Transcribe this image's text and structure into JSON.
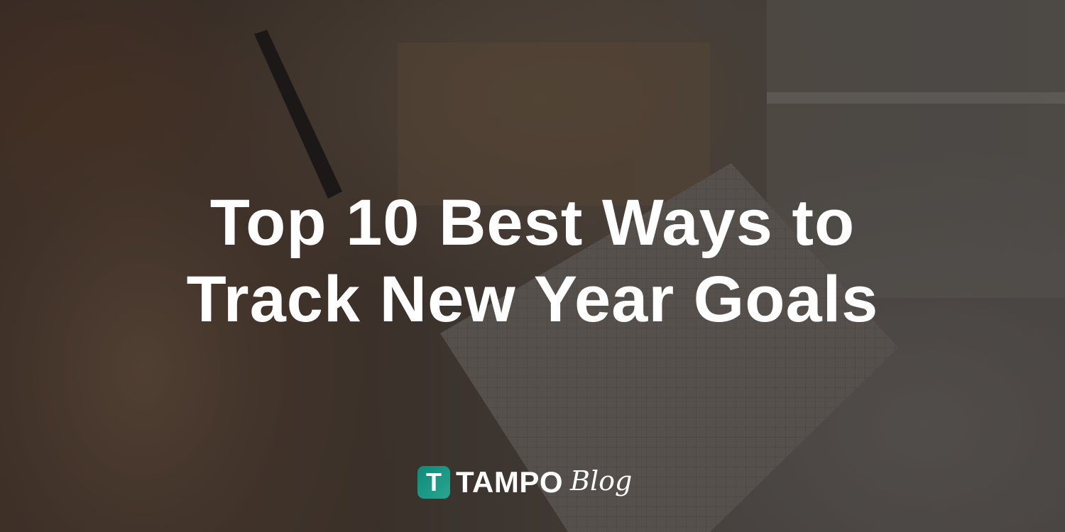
{
  "title": {
    "line1": "Top 10 Best Ways to",
    "line2": "Track New Year Goals"
  },
  "logo": {
    "mark": "T",
    "wordmark": "TAMPO",
    "suffix": "Blog",
    "color": "#1a9582"
  }
}
